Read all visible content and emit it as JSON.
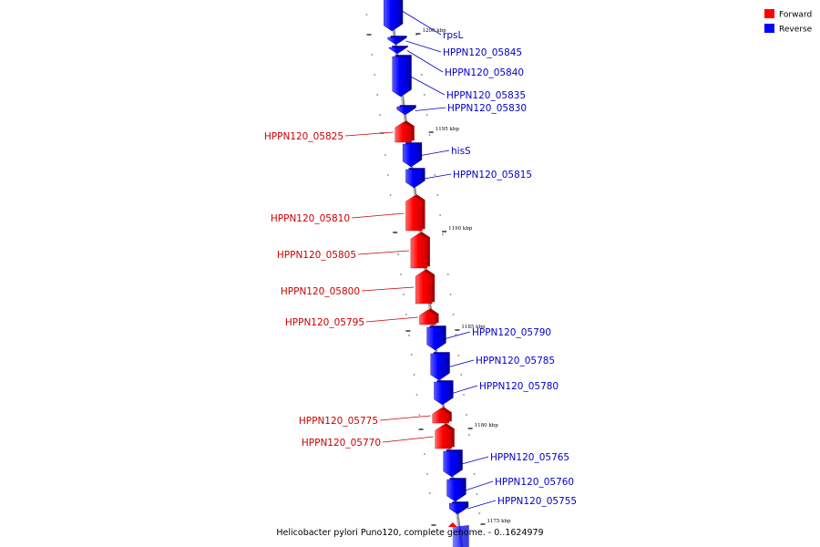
{
  "caption": "Helicobacter pylori Puno120, complete genome. - 0..1624979",
  "legend": [
    {
      "label": "Forward",
      "color": "#ff0000"
    },
    {
      "label": "Reverse",
      "color": "#0000ff"
    }
  ],
  "colors": {
    "forward": "#ff0000",
    "reverse": "#0000ff",
    "backbone": "#8a8a8a"
  },
  "ticks": [
    {
      "label": "1200 kbp",
      "kbp": 1200
    },
    {
      "label": "1195 kbp",
      "kbp": 1195
    },
    {
      "label": "1190 kbp",
      "kbp": 1190
    },
    {
      "label": "1185 kbp",
      "kbp": 1185
    },
    {
      "label": "1180 kbp",
      "kbp": 1180
    },
    {
      "label": "1175 kbp",
      "kbp": 1175
    }
  ],
  "genes": [
    {
      "name": "rpsL",
      "strand": "reverse"
    },
    {
      "name": "HPPN120_05845",
      "strand": "reverse"
    },
    {
      "name": "HPPN120_05840",
      "strand": "reverse"
    },
    {
      "name": "HPPN120_05835",
      "strand": "reverse"
    },
    {
      "name": "HPPN120_05830",
      "strand": "reverse"
    },
    {
      "name": "HPPN120_05825",
      "strand": "forward"
    },
    {
      "name": "hisS",
      "strand": "reverse"
    },
    {
      "name": "HPPN120_05815",
      "strand": "reverse"
    },
    {
      "name": "HPPN120_05810",
      "strand": "forward"
    },
    {
      "name": "HPPN120_05805",
      "strand": "forward"
    },
    {
      "name": "HPPN120_05800",
      "strand": "forward"
    },
    {
      "name": "HPPN120_05795",
      "strand": "forward"
    },
    {
      "name": "HPPN120_05790",
      "strand": "reverse"
    },
    {
      "name": "HPPN120_05785",
      "strand": "reverse"
    },
    {
      "name": "HPPN120_05780",
      "strand": "reverse"
    },
    {
      "name": "HPPN120_05775",
      "strand": "forward"
    },
    {
      "name": "HPPN120_05770",
      "strand": "forward"
    },
    {
      "name": "HPPN120_05765",
      "strand": "reverse"
    },
    {
      "name": "HPPN120_05760",
      "strand": "reverse"
    },
    {
      "name": "HPPN120_05755",
      "strand": "reverse"
    }
  ]
}
